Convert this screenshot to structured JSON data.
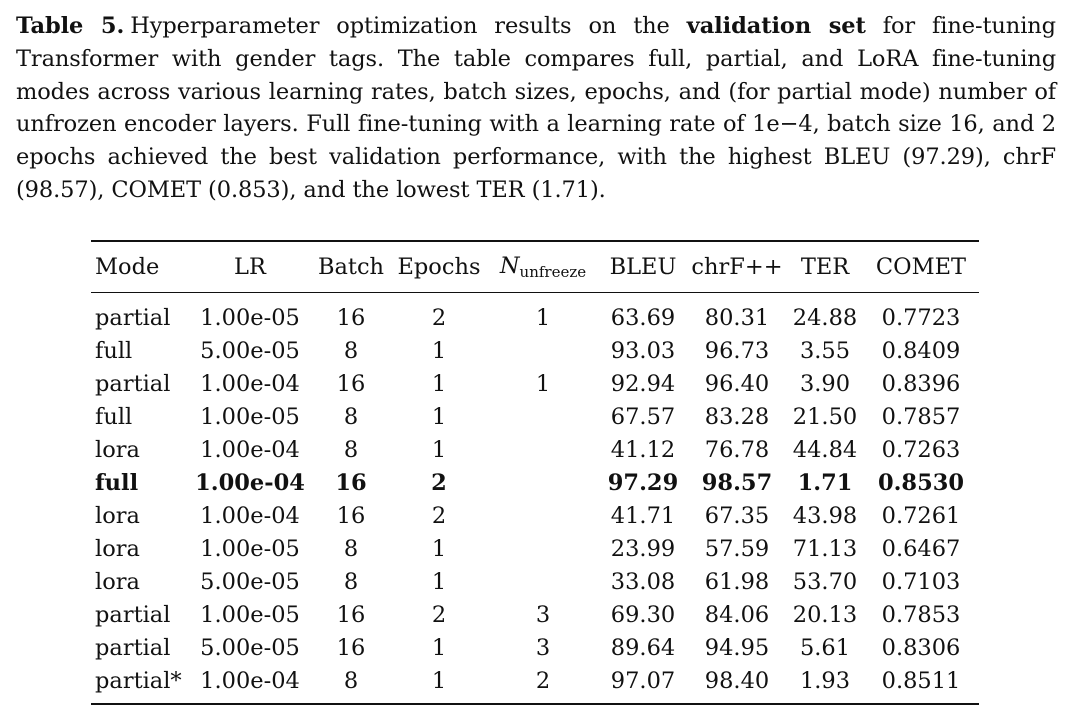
{
  "caption": {
    "label": "Table 5.",
    "text_before_bold": "Hyperparameter optimization results on the ",
    "bold_text": "validation set",
    "text_after_bold": " for fine-tuning Transformer with gender tags. The table compares full, partial, and LoRA fine-tuning modes across various learning rates, batch sizes, epochs, and (for partial mode) number of unfrozen encoder layers. Full fine-tuning with a learning rate of 1e−4, batch size 16, and 2 epochs achieved the best validation performance, with the highest BLEU (97.29), chrF (98.57), COMET (0.853), and the lowest TER (1.71)."
  },
  "table": {
    "headers": {
      "mode": "Mode",
      "lr": "LR",
      "batch": "Batch",
      "epochs": "Epochs",
      "nunfreeze_main": "N",
      "nunfreeze_sub": "unfreeze",
      "bleu": "BLEU",
      "chrf": "chrF++",
      "ter": "TER",
      "comet": "COMET"
    },
    "rows": [
      {
        "mode": "partial",
        "lr": "1.00e-05",
        "batch": "16",
        "epochs": "2",
        "nunfreeze": "1",
        "bleu": "63.69",
        "chrf": "80.31",
        "ter": "24.88",
        "comet": "0.7723"
      },
      {
        "mode": "full",
        "lr": "5.00e-05",
        "batch": "8",
        "epochs": "1",
        "nunfreeze": "",
        "bleu": "93.03",
        "chrf": "96.73",
        "ter": "3.55",
        "comet": "0.8409"
      },
      {
        "mode": "partial",
        "lr": "1.00e-04",
        "batch": "16",
        "epochs": "1",
        "nunfreeze": "1",
        "bleu": "92.94",
        "chrf": "96.40",
        "ter": "3.90",
        "comet": "0.8396"
      },
      {
        "mode": "full",
        "lr": "1.00e-05",
        "batch": "8",
        "epochs": "1",
        "nunfreeze": "",
        "bleu": "67.57",
        "chrf": "83.28",
        "ter": "21.50",
        "comet": "0.7857"
      },
      {
        "mode": "lora",
        "lr": "1.00e-04",
        "batch": "8",
        "epochs": "1",
        "nunfreeze": "",
        "bleu": "41.12",
        "chrf": "76.78",
        "ter": "44.84",
        "comet": "0.7263"
      },
      {
        "mode": "full",
        "lr": "1.00e-04",
        "batch": "16",
        "epochs": "2",
        "nunfreeze": "",
        "bleu": "97.29",
        "chrf": "98.57",
        "ter": "1.71",
        "comet": "0.8530"
      },
      {
        "mode": "lora",
        "lr": "1.00e-04",
        "batch": "16",
        "epochs": "2",
        "nunfreeze": "",
        "bleu": "41.71",
        "chrf": "67.35",
        "ter": "43.98",
        "comet": "0.7261"
      },
      {
        "mode": "lora",
        "lr": "1.00e-05",
        "batch": "8",
        "epochs": "1",
        "nunfreeze": "",
        "bleu": "23.99",
        "chrf": "57.59",
        "ter": "71.13",
        "comet": "0.6467"
      },
      {
        "mode": "lora",
        "lr": "5.00e-05",
        "batch": "8",
        "epochs": "1",
        "nunfreeze": "",
        "bleu": "33.08",
        "chrf": "61.98",
        "ter": "53.70",
        "comet": "0.7103"
      },
      {
        "mode": "partial",
        "lr": "1.00e-05",
        "batch": "16",
        "epochs": "2",
        "nunfreeze": "3",
        "bleu": "69.30",
        "chrf": "84.06",
        "ter": "20.13",
        "comet": "0.7853"
      },
      {
        "mode": "partial",
        "lr": "5.00e-05",
        "batch": "16",
        "epochs": "1",
        "nunfreeze": "3",
        "bleu": "89.64",
        "chrf": "94.95",
        "ter": "5.61",
        "comet": "0.8306"
      },
      {
        "mode": "partial*",
        "lr": "1.00e-04",
        "batch": "8",
        "epochs": "1",
        "nunfreeze": "2",
        "bleu": "97.07",
        "chrf": "98.40",
        "ter": "1.93",
        "comet": "0.8511"
      }
    ],
    "bold_row_index": 5
  }
}
